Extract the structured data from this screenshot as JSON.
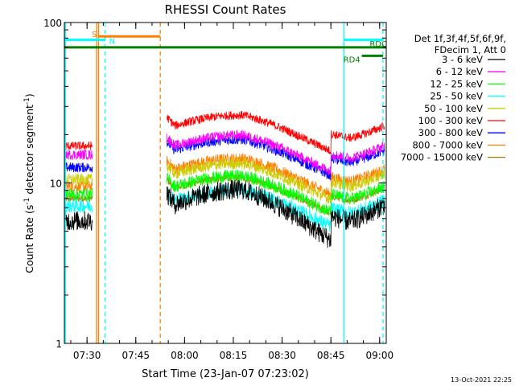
{
  "chart_data": {
    "type": "line",
    "title": "RHESSI Count Rates",
    "xlabel": "Start Time (23-Jan-07 07:23:02)",
    "ylabel_main": "Count Rate (s",
    "ylabel_sup1": "-1",
    "ylabel_mid": " detector segment",
    "ylabel_sup2": "-1",
    "ylabel_end": ")",
    "y_scale": "log",
    "ylim": [
      1,
      100
    ],
    "xlim_minutes": [
      0,
      99
    ],
    "x_ticks": [
      {
        "label": "07:30",
        "minutes": 6.97
      },
      {
        "label": "07:45",
        "minutes": 21.97
      },
      {
        "label": "08:00",
        "minutes": 36.97
      },
      {
        "label": "08:15",
        "minutes": 51.97
      },
      {
        "label": "08:30",
        "minutes": 66.97
      },
      {
        "label": "08:45",
        "minutes": 81.97
      },
      {
        "label": "09:00",
        "minutes": 96.97
      }
    ],
    "y_ticks": [
      {
        "label": "1",
        "value": 1
      },
      {
        "label": "10",
        "value": 10
      },
      {
        "label": "100",
        "value": 100
      }
    ],
    "legend_header": [
      "Det 1f,3f,4f,5f,6f,9f,",
      "FDecim 1, Att 0"
    ],
    "legend_position": "right",
    "series": [
      {
        "name": "3 - 6 keV",
        "color": "#000000",
        "level_early": 5.8,
        "level_late": 7.0,
        "noise": 0.14
      },
      {
        "name": "6 - 12 keV",
        "color": "#ff00ff",
        "level_early": 15.0,
        "level_late": 16.5,
        "noise": 0.07
      },
      {
        "name": "12 - 25 keV",
        "color": "#00ff00",
        "level_early": 8.5,
        "level_late": 9.2,
        "noise": 0.09
      },
      {
        "name": "25 - 50 keV",
        "color": "#00ffff",
        "level_early": 7.2,
        "level_late": 7.5,
        "noise": 0.1
      },
      {
        "name": "50 - 100 keV",
        "color": "#cccc00",
        "level_early": 10.5,
        "level_late": 11.0,
        "noise": 0.08
      },
      {
        "name": "100 - 300 keV",
        "color": "#ff0000",
        "level_early": 17.0,
        "level_late": 22.0,
        "noise": 0.06
      },
      {
        "name": "300 - 800 keV",
        "color": "#0000ff",
        "level_early": 12.5,
        "level_late": 15.5,
        "noise": 0.07
      },
      {
        "name": "800 - 7000 keV",
        "color": "#ff8000",
        "level_early": 9.5,
        "level_late": 11.8,
        "noise": 0.08
      },
      {
        "name": "7000 - 15000 keV",
        "color": "#b07800",
        "level_early": 8.0,
        "level_late": 9.0,
        "noise": 0.05
      }
    ],
    "data_gaps_minutes": [
      [
        8.6,
        31.4
      ]
    ],
    "markers": [
      {
        "label": "S",
        "color": "#ff8000",
        "start_minutes": 10.5,
        "end_minutes": 29.5,
        "level": 82
      },
      {
        "label": "N",
        "color": "#00ffff",
        "start_minutes": 0,
        "end_minutes": 12.5,
        "level": 78
      },
      {
        "label": "",
        "color": "#00ffff",
        "start_minutes": 86,
        "end_minutes": 98,
        "level": 78
      },
      {
        "label": "",
        "color": "#008000",
        "start_minutes": 0,
        "end_minutes": 99,
        "level": 70
      },
      {
        "label": "RD4",
        "color": "#008000",
        "start_minutes": 91.5,
        "end_minutes": 98,
        "level": 62
      },
      {
        "label": "RDC",
        "color": "#008000",
        "start_minutes": 99,
        "end_minutes": 99,
        "level": 70
      }
    ],
    "vertical_lines": [
      {
        "minutes": 0.3,
        "color": "#00ffff",
        "style": "solid"
      },
      {
        "minutes": 9.9,
        "color": "#ff8000",
        "style": "solid"
      },
      {
        "minutes": 10.5,
        "color": "#ff8000",
        "style": "solid"
      },
      {
        "minutes": 12.5,
        "color": "#00ffff",
        "style": "dashed"
      },
      {
        "minutes": 29.5,
        "color": "#ff8000",
        "style": "dashed"
      },
      {
        "minutes": 86.0,
        "color": "#00ffff",
        "style": "solid"
      },
      {
        "minutes": 98.0,
        "color": "#00ffff",
        "style": "dashed"
      }
    ],
    "timestamp": "13-Oct-2021 22:25"
  }
}
